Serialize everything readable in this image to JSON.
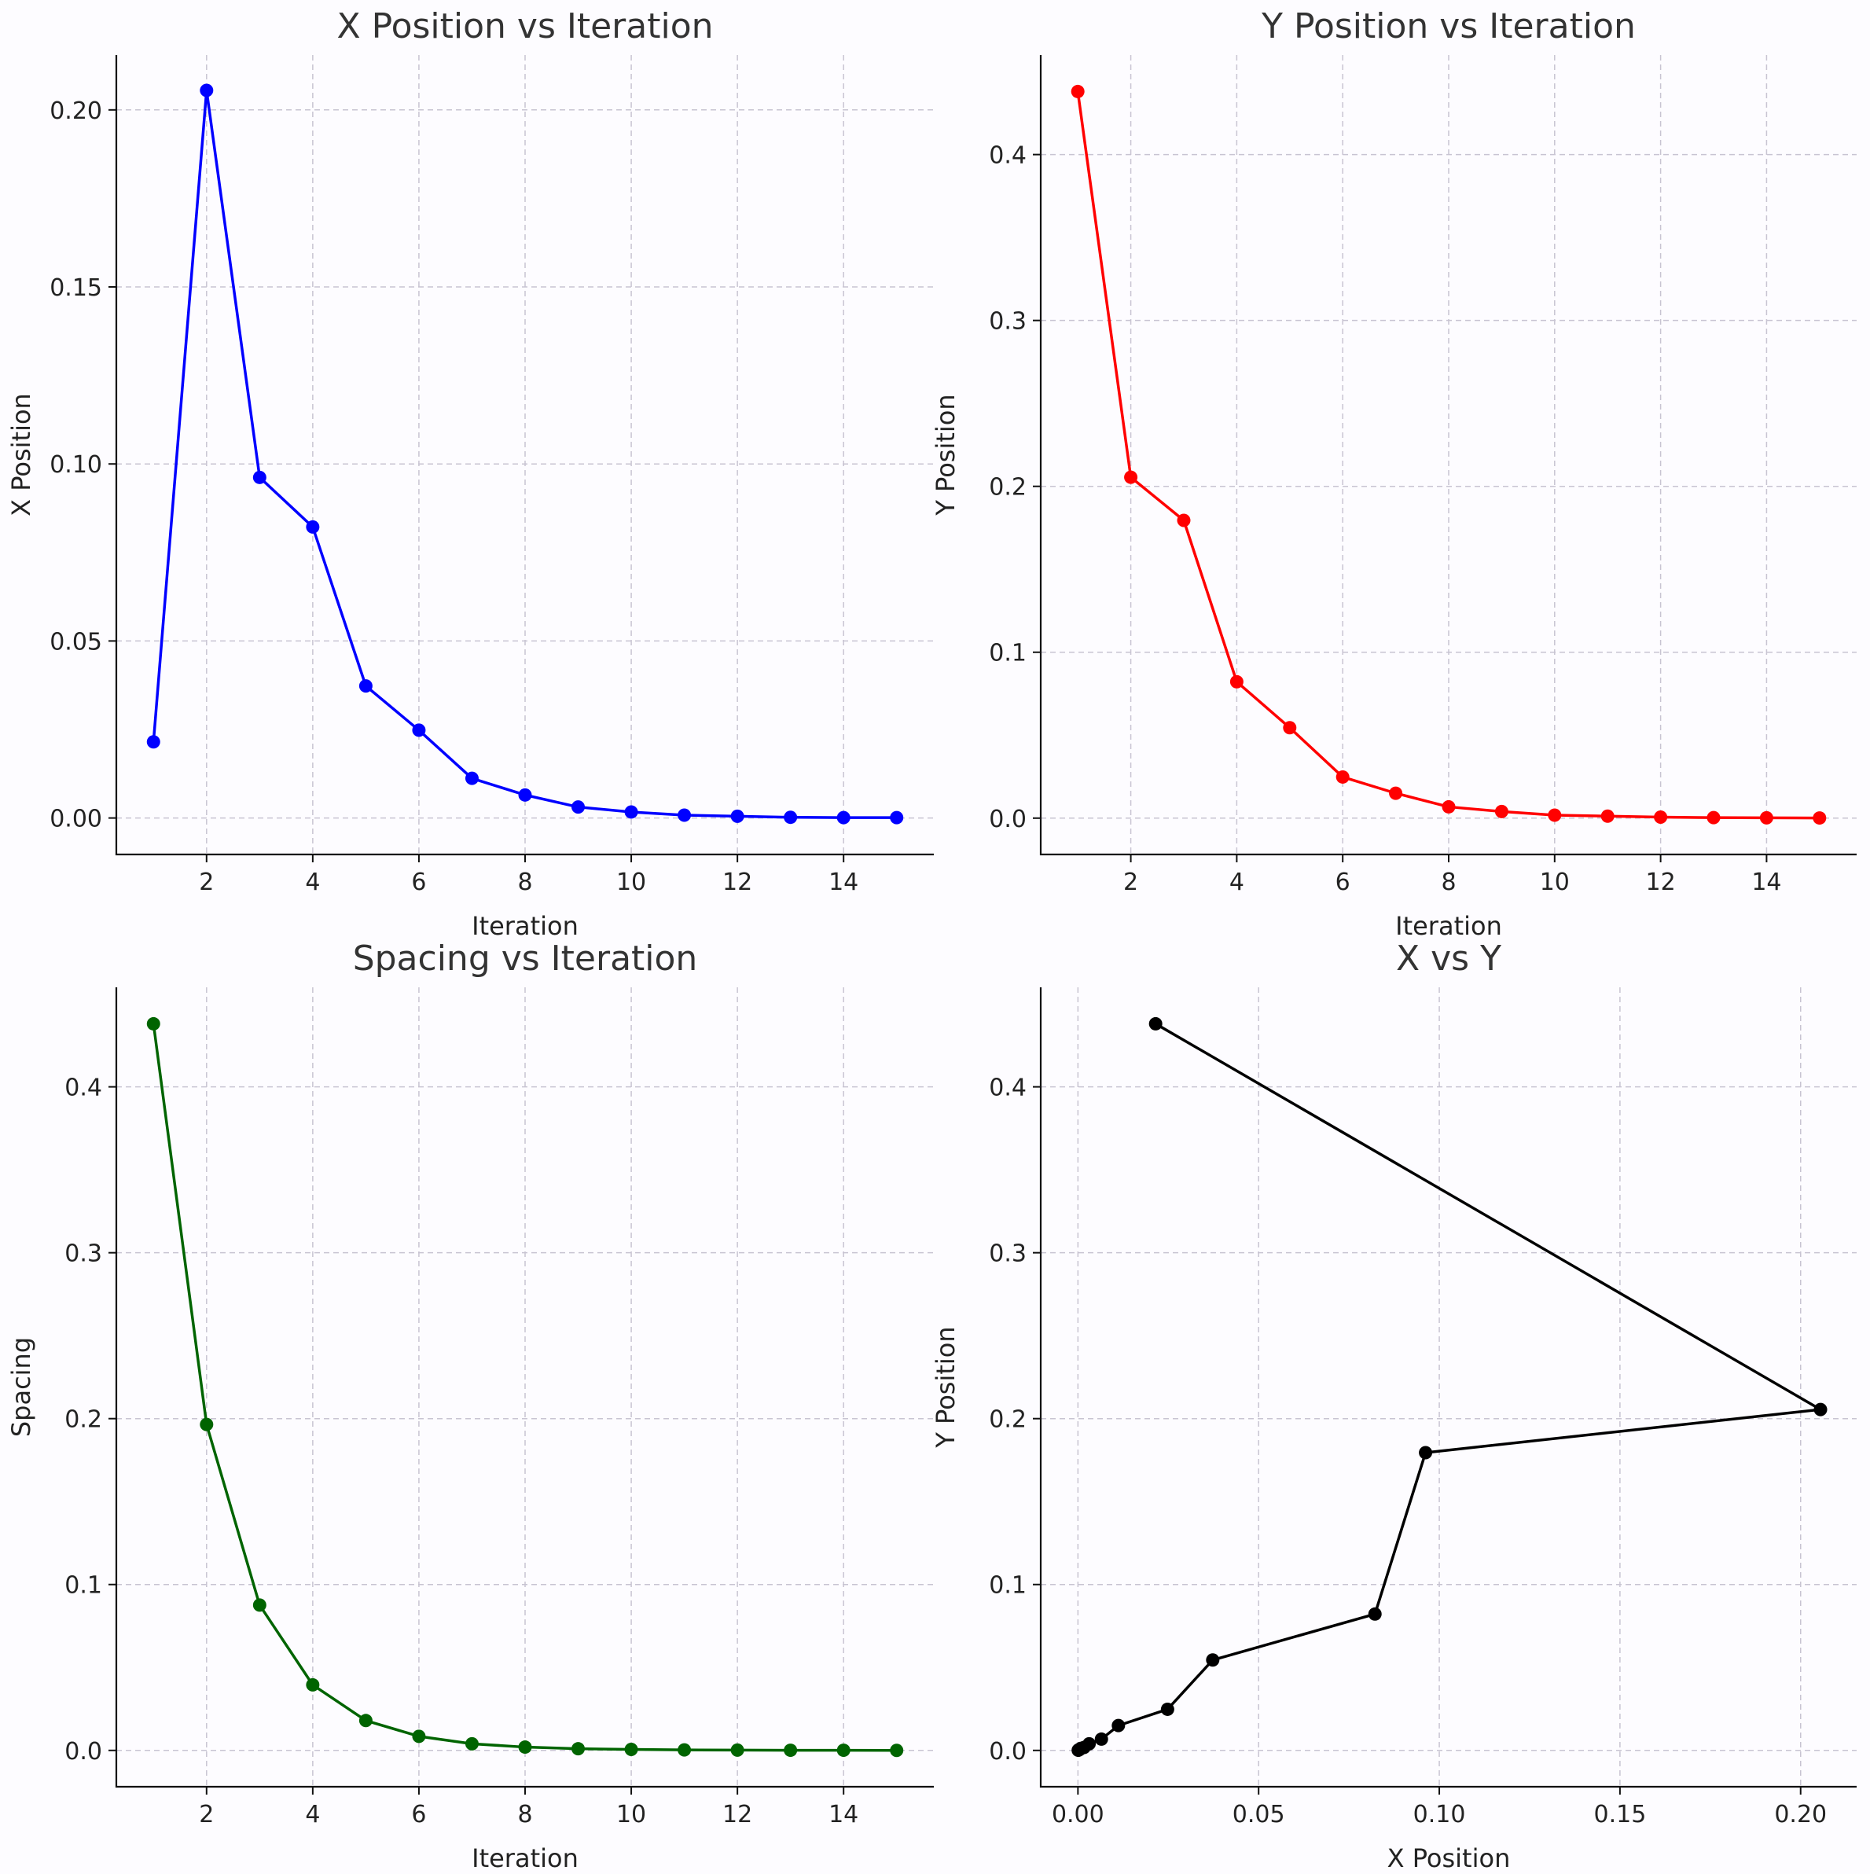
{
  "chart_data": [
    {
      "type": "line",
      "title": "X Position vs Iteration",
      "xlabel": "Iteration",
      "ylabel": "X Position",
      "color": "#0000ff",
      "marker": "circle",
      "grid": true,
      "xlim": [
        0.3,
        15.7
      ],
      "ylim": [
        -0.0103,
        0.2155
      ],
      "xticks": [
        2,
        4,
        6,
        8,
        10,
        12,
        14
      ],
      "xtick_labels": [
        "2",
        "4",
        "6",
        "8",
        "10",
        "12",
        "14"
      ],
      "yticks": [
        0.0,
        0.05,
        0.1,
        0.15,
        0.2
      ],
      "ytick_labels": [
        "0.00",
        "0.05",
        "0.10",
        "0.15",
        "0.20"
      ],
      "x": [
        1,
        2,
        3,
        4,
        5,
        6,
        7,
        8,
        9,
        10,
        11,
        12,
        13,
        14,
        15
      ],
      "series": [
        {
          "values": [
            0.0215,
            0.2055,
            0.0962,
            0.0822,
            0.0373,
            0.0248,
            0.0112,
            0.0065,
            0.0031,
            0.0017,
            0.0008,
            0.0005,
            0.0002,
            0.0001,
            0.0001
          ]
        }
      ]
    },
    {
      "type": "line",
      "title": "Y Position vs Iteration",
      "xlabel": "Iteration",
      "ylabel": "Y Position",
      "color": "#ff0000",
      "marker": "circle",
      "grid": true,
      "xlim": [
        0.3,
        15.7
      ],
      "ylim": [
        -0.0219,
        0.46
      ],
      "xticks": [
        2,
        4,
        6,
        8,
        10,
        12,
        14
      ],
      "xtick_labels": [
        "2",
        "4",
        "6",
        "8",
        "10",
        "12",
        "14"
      ],
      "yticks": [
        0.0,
        0.1,
        0.2,
        0.3,
        0.4
      ],
      "ytick_labels": [
        "0.0",
        "0.1",
        "0.2",
        "0.3",
        "0.4"
      ],
      "x": [
        1,
        2,
        3,
        4,
        5,
        6,
        7,
        8,
        9,
        10,
        11,
        12,
        13,
        14,
        15
      ],
      "series": [
        {
          "values": [
            0.438,
            0.2055,
            0.1795,
            0.0822,
            0.0545,
            0.0248,
            0.015,
            0.0068,
            0.004,
            0.0018,
            0.0012,
            0.0006,
            0.0003,
            0.0002,
            0.0001
          ]
        }
      ]
    },
    {
      "type": "line",
      "title": "Spacing vs Iteration",
      "xlabel": "Iteration",
      "ylabel": "Spacing",
      "color": "#006400",
      "marker": "circle",
      "grid": true,
      "xlim": [
        0.3,
        15.7
      ],
      "ylim": [
        -0.0219,
        0.46
      ],
      "xticks": [
        2,
        4,
        6,
        8,
        10,
        12,
        14
      ],
      "xtick_labels": [
        "2",
        "4",
        "6",
        "8",
        "10",
        "12",
        "14"
      ],
      "yticks": [
        0.0,
        0.1,
        0.2,
        0.3,
        0.4
      ],
      "ytick_labels": [
        "0.0",
        "0.1",
        "0.2",
        "0.3",
        "0.4"
      ],
      "x": [
        1,
        2,
        3,
        4,
        5,
        6,
        7,
        8,
        9,
        10,
        11,
        12,
        13,
        14,
        15
      ],
      "series": [
        {
          "values": [
            0.438,
            0.1965,
            0.0876,
            0.0395,
            0.018,
            0.0085,
            0.004,
            0.002,
            0.001,
            0.0006,
            0.0003,
            0.0002,
            0.0001,
            0.0001,
            0.0
          ]
        }
      ]
    },
    {
      "type": "line",
      "title": "X vs Y",
      "xlabel": "X Position",
      "ylabel": "Y Position",
      "color": "#000000",
      "marker": "circle",
      "grid": true,
      "xlim": [
        -0.0103,
        0.2155
      ],
      "ylim": [
        -0.0219,
        0.46
      ],
      "xticks": [
        0.0,
        0.05,
        0.1,
        0.15,
        0.2
      ],
      "xtick_labels": [
        "0.00",
        "0.05",
        "0.10",
        "0.15",
        "0.20"
      ],
      "yticks": [
        0.0,
        0.1,
        0.2,
        0.3,
        0.4
      ],
      "ytick_labels": [
        "0.0",
        "0.1",
        "0.2",
        "0.3",
        "0.4"
      ],
      "x": [
        0.0215,
        0.2055,
        0.0962,
        0.0822,
        0.0373,
        0.0248,
        0.0112,
        0.0065,
        0.0031,
        0.0017,
        0.0008,
        0.0005,
        0.0002,
        0.0001,
        0.0001
      ],
      "series": [
        {
          "values": [
            0.438,
            0.2055,
            0.1795,
            0.0822,
            0.0545,
            0.0248,
            0.015,
            0.0068,
            0.004,
            0.0018,
            0.0012,
            0.0006,
            0.0003,
            0.0002,
            0.0001
          ]
        }
      ]
    }
  ]
}
